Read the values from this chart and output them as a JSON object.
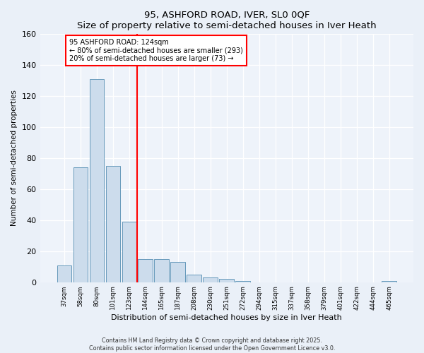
{
  "title1": "95, ASHFORD ROAD, IVER, SL0 0QF",
  "title2": "Size of property relative to semi-detached houses in Iver Heath",
  "xlabel": "Distribution of semi-detached houses by size in Iver Heath",
  "ylabel": "Number of semi-detached properties",
  "categories": [
    "37sqm",
    "58sqm",
    "80sqm",
    "101sqm",
    "123sqm",
    "144sqm",
    "165sqm",
    "187sqm",
    "208sqm",
    "230sqm",
    "251sqm",
    "272sqm",
    "294sqm",
    "315sqm",
    "337sqm",
    "358sqm",
    "379sqm",
    "401sqm",
    "422sqm",
    "444sqm",
    "465sqm"
  ],
  "values": [
    11,
    74,
    131,
    75,
    39,
    15,
    15,
    13,
    5,
    3,
    2,
    1,
    0,
    0,
    0,
    0,
    0,
    0,
    0,
    0,
    1
  ],
  "bar_color": "#ccdcec",
  "bar_edge_color": "#6699bb",
  "red_line_x": 4.5,
  "annotation_line1": "95 ASHFORD ROAD: 124sqm",
  "annotation_line2": "← 80% of semi-detached houses are smaller (293)",
  "annotation_line3": "20% of semi-detached houses are larger (73) →",
  "ylim": [
    0,
    160
  ],
  "yticks": [
    0,
    20,
    40,
    60,
    80,
    100,
    120,
    140,
    160
  ],
  "footer1": "Contains HM Land Registry data © Crown copyright and database right 2025.",
  "footer2": "Contains public sector information licensed under the Open Government Licence v3.0.",
  "bg_color": "#eaf0f8",
  "plot_bg_color": "#eef3fa"
}
